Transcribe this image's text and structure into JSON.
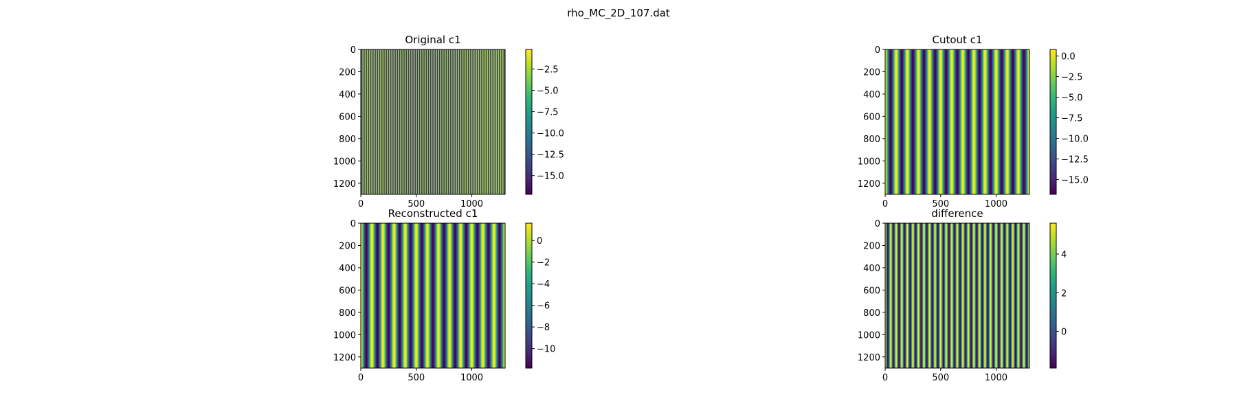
{
  "figure_title": "rho_MC_2D_107.dat",
  "colormap": [
    "#440154",
    "#482878",
    "#3e4989",
    "#31688e",
    "#26828e",
    "#1f9e89",
    "#35b779",
    "#6ece58",
    "#b5de2b",
    "#fde725"
  ],
  "chart_data": [
    {
      "type": "heatmap",
      "title": "Original c1",
      "xlim": [
        0,
        1300
      ],
      "ylim": [
        1300,
        0
      ],
      "x_ticks": [
        0,
        500,
        1000
      ],
      "y_ticks": [
        0,
        200,
        400,
        600,
        800,
        1000,
        1200
      ],
      "x_tick_labels": [
        "0",
        "500",
        "1000"
      ],
      "y_tick_labels": [
        "0",
        "200",
        "400",
        "600",
        "800",
        "1000",
        "1200"
      ],
      "pattern": "vertical stripes",
      "stripe_count": 65,
      "colorbar": {
        "min": -17.2,
        "max": -0.2,
        "ticks": [
          -2.5,
          -5.0,
          -7.5,
          -10.0,
          -12.5,
          -15.0
        ],
        "tick_labels": [
          "−2.5",
          "−5.0",
          "−7.5",
          "−10.0",
          "−12.5",
          "−15.0"
        ]
      }
    },
    {
      "type": "heatmap",
      "title": "Cutout c1",
      "xlim": [
        0,
        1300
      ],
      "ylim": [
        1300,
        0
      ],
      "x_ticks": [
        0,
        500,
        1000
      ],
      "y_ticks": [
        0,
        200,
        400,
        600,
        800,
        1000,
        1200
      ],
      "x_tick_labels": [
        "0",
        "500",
        "1000"
      ],
      "y_tick_labels": [
        "0",
        "200",
        "400",
        "600",
        "800",
        "1000",
        "1200"
      ],
      "pattern": "vertical stripes",
      "stripe_count": 13,
      "colorbar": {
        "min": -16.8,
        "max": 0.8,
        "ticks": [
          0.0,
          -2.5,
          -5.0,
          -7.5,
          -10.0,
          -12.5,
          -15.0
        ],
        "tick_labels": [
          "0.0",
          "−2.5",
          "−5.0",
          "−7.5",
          "−10.0",
          "−12.5",
          "−15.0"
        ]
      }
    },
    {
      "type": "heatmap",
      "title": "Reconstructed c1",
      "xlim": [
        0,
        1300
      ],
      "ylim": [
        1300,
        0
      ],
      "x_ticks": [
        0,
        500,
        1000
      ],
      "y_ticks": [
        0,
        200,
        400,
        600,
        800,
        1000,
        1200
      ],
      "x_tick_labels": [
        "0",
        "500",
        "1000"
      ],
      "y_tick_labels": [
        "0",
        "200",
        "400",
        "600",
        "800",
        "1000",
        "1200"
      ],
      "pattern": "vertical stripes",
      "stripe_count": 13,
      "colorbar": {
        "min": -11.8,
        "max": 1.6,
        "ticks": [
          0,
          -2,
          -4,
          -6,
          -8,
          -10
        ],
        "tick_labels": [
          "0",
          "−2",
          "−4",
          "−6",
          "−8",
          "−10"
        ]
      }
    },
    {
      "type": "heatmap",
      "title": "difference",
      "xlim": [
        0,
        1300
      ],
      "ylim": [
        1300,
        0
      ],
      "x_ticks": [
        0,
        500,
        1000
      ],
      "y_ticks": [
        0,
        200,
        400,
        600,
        800,
        1000,
        1200
      ],
      "x_tick_labels": [
        "0",
        "500",
        "1000"
      ],
      "y_tick_labels": [
        "0",
        "200",
        "400",
        "600",
        "800",
        "1000",
        "1200"
      ],
      "pattern": "vertical stripes",
      "stripe_count": 26,
      "colorbar": {
        "min": -1.9,
        "max": 5.6,
        "ticks": [
          4,
          2,
          0
        ],
        "tick_labels": [
          "4",
          "2",
          "0"
        ]
      }
    }
  ]
}
